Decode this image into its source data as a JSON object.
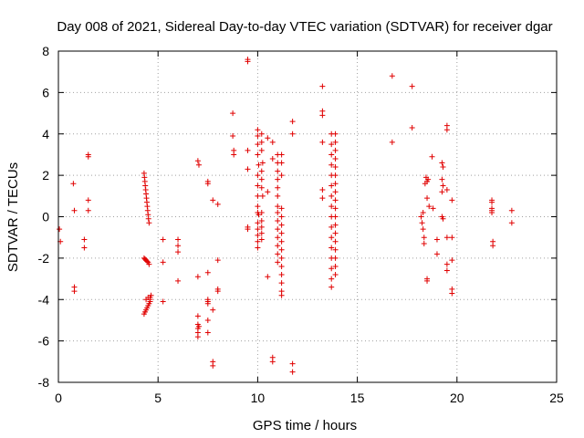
{
  "chart_data": {
    "type": "scatter",
    "title": "Day 008 of 2021, Sidereal Day-to-day VTEC variation (SDTVAR) for receiver dgar",
    "xlabel": "GPS time / hours",
    "ylabel": "SDTVAR / TECUs",
    "xlim": [
      0,
      25
    ],
    "ylim": [
      -8,
      8
    ],
    "xticks": [
      0,
      5,
      10,
      15,
      20,
      25
    ],
    "yticks": [
      -8,
      -6,
      -4,
      -2,
      0,
      2,
      4,
      6,
      8
    ],
    "grid": true,
    "marker": "plus",
    "color": "#e00000",
    "series": [
      {
        "name": "SDTVAR",
        "points": [
          [
            0.05,
            -0.6
          ],
          [
            0.1,
            -1.2
          ],
          [
            0.75,
            1.6
          ],
          [
            0.8,
            0.3
          ],
          [
            0.8,
            -3.4
          ],
          [
            0.8,
            -3.6
          ],
          [
            1.3,
            -1.1
          ],
          [
            1.3,
            -1.5
          ],
          [
            1.5,
            3.0
          ],
          [
            1.5,
            2.9
          ],
          [
            1.5,
            0.8
          ],
          [
            1.5,
            0.3
          ],
          [
            4.3,
            2.1
          ],
          [
            4.32,
            1.9
          ],
          [
            4.34,
            1.7
          ],
          [
            4.36,
            1.5
          ],
          [
            4.38,
            1.3
          ],
          [
            4.4,
            1.1
          ],
          [
            4.42,
            0.9
          ],
          [
            4.44,
            0.7
          ],
          [
            4.46,
            0.5
          ],
          [
            4.48,
            0.3
          ],
          [
            4.5,
            0.1
          ],
          [
            4.52,
            -0.1
          ],
          [
            4.55,
            -0.3
          ],
          [
            4.3,
            -2.0
          ],
          [
            4.35,
            -2.05
          ],
          [
            4.4,
            -2.1
          ],
          [
            4.45,
            -2.15
          ],
          [
            4.5,
            -2.2
          ],
          [
            4.55,
            -2.3
          ],
          [
            4.3,
            -4.7
          ],
          [
            4.35,
            -4.6
          ],
          [
            4.4,
            -4.5
          ],
          [
            4.45,
            -4.4
          ],
          [
            4.5,
            -4.3
          ],
          [
            4.55,
            -4.2
          ],
          [
            4.6,
            -4.1
          ],
          [
            4.6,
            -4.0
          ],
          [
            4.6,
            -3.9
          ],
          [
            4.65,
            -3.8
          ],
          [
            4.4,
            -4.0
          ],
          [
            4.5,
            -3.9
          ],
          [
            5.25,
            -1.1
          ],
          [
            5.25,
            -2.2
          ],
          [
            5.25,
            -4.1
          ],
          [
            6.0,
            -1.1
          ],
          [
            6.0,
            -1.4
          ],
          [
            6.0,
            -1.7
          ],
          [
            6.0,
            -3.1
          ],
          [
            7.0,
            2.7
          ],
          [
            7.05,
            2.5
          ],
          [
            7.0,
            -2.9
          ],
          [
            7.0,
            -4.8
          ],
          [
            7.0,
            -5.2
          ],
          [
            7.0,
            -5.4
          ],
          [
            7.0,
            -5.6
          ],
          [
            7.0,
            -5.8
          ],
          [
            7.05,
            -5.3
          ],
          [
            7.5,
            1.7
          ],
          [
            7.5,
            1.6
          ],
          [
            7.5,
            -2.7
          ],
          [
            7.5,
            -4.0
          ],
          [
            7.5,
            -4.1
          ],
          [
            7.5,
            -4.2
          ],
          [
            7.5,
            -5.0
          ],
          [
            7.5,
            -5.6
          ],
          [
            7.75,
            0.8
          ],
          [
            7.75,
            -4.5
          ],
          [
            7.75,
            -7.0
          ],
          [
            7.75,
            -7.2
          ],
          [
            8.0,
            0.6
          ],
          [
            8.0,
            -2.1
          ],
          [
            8.0,
            -3.5
          ],
          [
            8.0,
            -3.6
          ],
          [
            8.75,
            5.0
          ],
          [
            8.75,
            3.9
          ],
          [
            8.8,
            3.2
          ],
          [
            8.8,
            3.0
          ],
          [
            9.5,
            7.6
          ],
          [
            9.5,
            7.5
          ],
          [
            9.5,
            3.2
          ],
          [
            9.5,
            2.3
          ],
          [
            9.5,
            -0.6
          ],
          [
            9.5,
            -0.5
          ],
          [
            10.0,
            4.2
          ],
          [
            10.0,
            3.9
          ],
          [
            10.0,
            3.5
          ],
          [
            10.0,
            3.0
          ],
          [
            10.05,
            2.5
          ],
          [
            10.0,
            2.0
          ],
          [
            10.0,
            1.5
          ],
          [
            10.0,
            1.0
          ],
          [
            10.0,
            0.5
          ],
          [
            10.0,
            0.2
          ],
          [
            10.05,
            0.1
          ],
          [
            10.0,
            -0.3
          ],
          [
            10.0,
            -0.6
          ],
          [
            10.0,
            -0.9
          ],
          [
            10.0,
            -1.2
          ],
          [
            10.0,
            -1.5
          ],
          [
            10.2,
            4.0
          ],
          [
            10.2,
            3.6
          ],
          [
            10.2,
            3.2
          ],
          [
            10.25,
            2.6
          ],
          [
            10.2,
            2.2
          ],
          [
            10.2,
            1.8
          ],
          [
            10.2,
            1.4
          ],
          [
            10.25,
            1.0
          ],
          [
            10.2,
            0.2
          ],
          [
            10.2,
            -0.2
          ],
          [
            10.2,
            -0.5
          ],
          [
            10.2,
            -0.8
          ],
          [
            10.2,
            -1.1
          ],
          [
            10.5,
            3.8
          ],
          [
            10.5,
            1.2
          ],
          [
            10.5,
            -2.9
          ],
          [
            10.75,
            3.6
          ],
          [
            10.75,
            2.8
          ],
          [
            10.75,
            -6.8
          ],
          [
            10.75,
            -7.0
          ],
          [
            11.0,
            3.0
          ],
          [
            11.0,
            2.6
          ],
          [
            11.0,
            2.2
          ],
          [
            11.0,
            1.8
          ],
          [
            11.0,
            1.4
          ],
          [
            11.0,
            1.0
          ],
          [
            11.0,
            0.5
          ],
          [
            11.0,
            0.2
          ],
          [
            11.0,
            -0.2
          ],
          [
            11.0,
            -0.6
          ],
          [
            11.0,
            -1.0
          ],
          [
            11.0,
            -1.4
          ],
          [
            11.0,
            -1.8
          ],
          [
            11.0,
            -2.2
          ],
          [
            11.2,
            3.0
          ],
          [
            11.2,
            2.6
          ],
          [
            11.2,
            2.0
          ],
          [
            11.2,
            0.4
          ],
          [
            11.2,
            0.0
          ],
          [
            11.2,
            -0.4
          ],
          [
            11.2,
            -0.8
          ],
          [
            11.2,
            -1.2
          ],
          [
            11.2,
            -1.6
          ],
          [
            11.2,
            -2.0
          ],
          [
            11.2,
            -2.4
          ],
          [
            11.2,
            -2.8
          ],
          [
            11.2,
            -3.2
          ],
          [
            11.2,
            -3.6
          ],
          [
            11.2,
            -3.8
          ],
          [
            11.75,
            4.6
          ],
          [
            11.75,
            4.0
          ],
          [
            11.75,
            -7.1
          ],
          [
            11.75,
            -7.5
          ],
          [
            13.25,
            6.3
          ],
          [
            13.25,
            5.1
          ],
          [
            13.25,
            4.9
          ],
          [
            13.25,
            3.6
          ],
          [
            13.25,
            1.3
          ],
          [
            13.25,
            0.9
          ],
          [
            13.7,
            4.0
          ],
          [
            13.7,
            3.5
          ],
          [
            13.7,
            3.0
          ],
          [
            13.7,
            2.5
          ],
          [
            13.7,
            2.0
          ],
          [
            13.7,
            1.5
          ],
          [
            13.7,
            1.0
          ],
          [
            13.7,
            0.5
          ],
          [
            13.7,
            0.0
          ],
          [
            13.7,
            -0.5
          ],
          [
            13.7,
            -1.0
          ],
          [
            13.7,
            -1.5
          ],
          [
            13.7,
            -2.0
          ],
          [
            13.7,
            -2.5
          ],
          [
            13.7,
            -3.0
          ],
          [
            13.7,
            -3.4
          ],
          [
            13.9,
            4.0
          ],
          [
            13.9,
            3.6
          ],
          [
            13.9,
            3.2
          ],
          [
            13.9,
            2.8
          ],
          [
            13.9,
            2.4
          ],
          [
            13.9,
            2.0
          ],
          [
            13.9,
            1.6
          ],
          [
            13.9,
            1.2
          ],
          [
            13.9,
            0.8
          ],
          [
            13.9,
            0.4
          ],
          [
            13.9,
            0.0
          ],
          [
            13.9,
            -0.4
          ],
          [
            13.9,
            -0.8
          ],
          [
            13.9,
            -1.2
          ],
          [
            13.9,
            -1.6
          ],
          [
            13.9,
            -2.0
          ],
          [
            13.9,
            -2.4
          ],
          [
            13.9,
            -2.8
          ],
          [
            16.75,
            6.8
          ],
          [
            16.75,
            3.6
          ],
          [
            17.75,
            6.3
          ],
          [
            17.75,
            4.3
          ],
          [
            18.2,
            0.0
          ],
          [
            18.25,
            -0.3
          ],
          [
            18.3,
            0.2
          ],
          [
            18.3,
            -0.6
          ],
          [
            18.35,
            -1.0
          ],
          [
            18.35,
            -1.3
          ],
          [
            18.4,
            1.6
          ],
          [
            18.45,
            1.9
          ],
          [
            18.5,
            1.7
          ],
          [
            18.5,
            0.9
          ],
          [
            18.5,
            -3.0
          ],
          [
            18.5,
            -3.1
          ],
          [
            18.55,
            1.8
          ],
          [
            18.6,
            0.5
          ],
          [
            18.75,
            2.9
          ],
          [
            18.8,
            0.4
          ],
          [
            19.0,
            -1.1
          ],
          [
            19.0,
            -1.8
          ],
          [
            19.25,
            2.6
          ],
          [
            19.25,
            1.8
          ],
          [
            19.25,
            1.2
          ],
          [
            19.25,
            0.0
          ],
          [
            19.3,
            2.4
          ],
          [
            19.3,
            1.5
          ],
          [
            19.3,
            -0.1
          ],
          [
            19.5,
            4.4
          ],
          [
            19.5,
            4.2
          ],
          [
            19.5,
            1.3
          ],
          [
            19.5,
            -1.0
          ],
          [
            19.5,
            -2.3
          ],
          [
            19.5,
            -2.6
          ],
          [
            19.75,
            0.8
          ],
          [
            19.75,
            -1.0
          ],
          [
            19.75,
            -3.5
          ],
          [
            19.75,
            -3.7
          ],
          [
            19.75,
            -2.1
          ],
          [
            21.75,
            0.8
          ],
          [
            21.75,
            0.4
          ],
          [
            21.75,
            0.2
          ],
          [
            21.8,
            -1.2
          ],
          [
            21.8,
            -1.4
          ],
          [
            21.75,
            0.7
          ],
          [
            21.75,
            0.3
          ],
          [
            22.75,
            0.3
          ],
          [
            22.75,
            -0.3
          ]
        ]
      }
    ]
  }
}
